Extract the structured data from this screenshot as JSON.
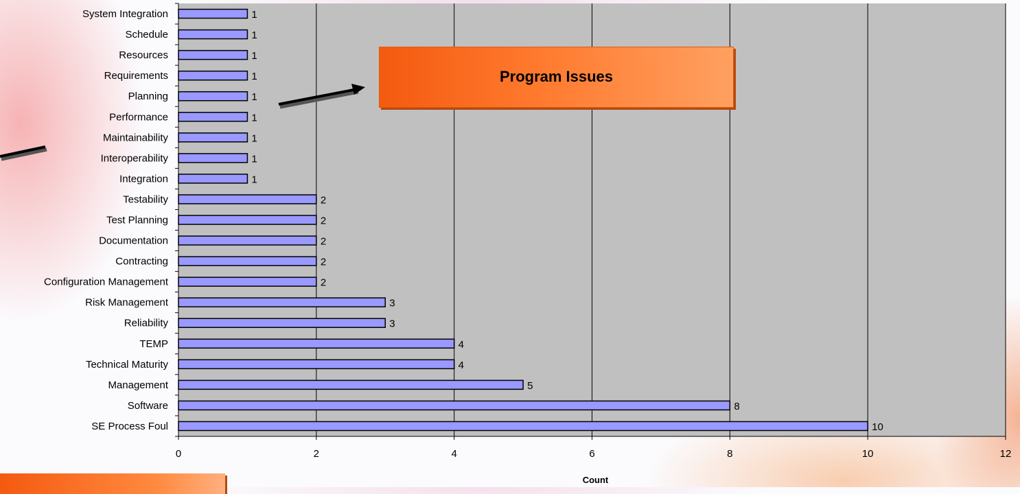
{
  "chart_data": {
    "type": "bar",
    "orientation": "horizontal",
    "categories": [
      "System Integration",
      "Schedule",
      "Resources",
      "Requirements",
      "Planning",
      "Performance",
      "Maintainability",
      "Interoperability",
      "Integration",
      "Testability",
      "Test Planning",
      "Documentation",
      "Contracting",
      "Configuration Management",
      "Risk Management",
      "Reliability",
      "TEMP",
      "Technical Maturity",
      "Management",
      "Software",
      "SE Process Foul"
    ],
    "values": [
      1,
      1,
      1,
      1,
      1,
      1,
      1,
      1,
      1,
      2,
      2,
      2,
      2,
      2,
      3,
      3,
      4,
      4,
      5,
      8,
      10
    ],
    "xlabel": "Count",
    "xlim": [
      0,
      12
    ],
    "xticks": [
      0,
      2,
      4,
      6,
      8,
      10,
      12
    ],
    "grid": "vertical",
    "colors": {
      "bar": "#9999ff",
      "plot_bg": "#c0c0c0",
      "gridline": "#000000"
    },
    "annotations": [
      "Program Issues"
    ]
  },
  "callout": {
    "text": "Program Issues"
  }
}
